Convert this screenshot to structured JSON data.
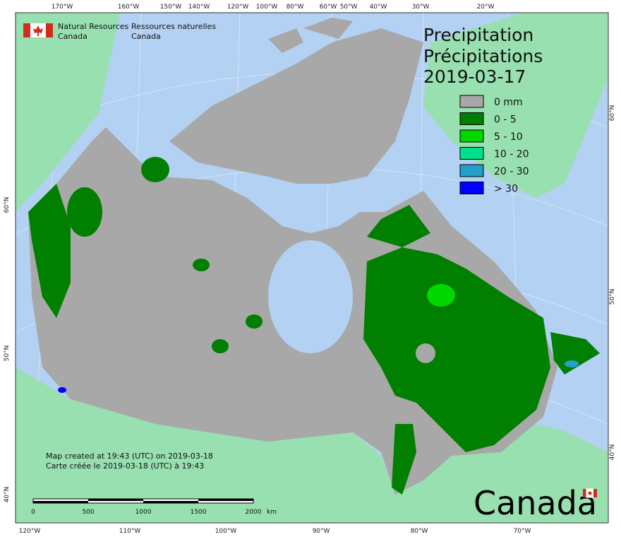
{
  "header": {
    "english": [
      "Natural Resources",
      "Canada"
    ],
    "french": [
      "Ressources naturelles",
      "Canada"
    ]
  },
  "title": [
    "Precipitation",
    "Précipitations",
    "2019-03-17"
  ],
  "legend": [
    {
      "label": "0 mm",
      "color": "#a8a8a8"
    },
    {
      "label": "0 - 5",
      "color": "#007f00"
    },
    {
      "label": "5 - 10",
      "color": "#00d800"
    },
    {
      "label": "10 - 20",
      "color": "#00e08a"
    },
    {
      "label": "20 - 30",
      "color": "#22a0c8"
    },
    {
      "label": "> 30",
      "color": "#0000ff"
    }
  ],
  "grid_labels": {
    "top": [
      "170°W",
      "160°W",
      "150°W",
      "140°W",
      "120°W",
      "100°W",
      "80°W",
      "60°W",
      "50°W",
      "40°W",
      "30°W",
      "20°W"
    ],
    "bottom": [
      "120°W",
      "110°W",
      "100°W",
      "90°W",
      "80°W",
      "70°W"
    ],
    "left": [
      "60°N",
      "50°N",
      "40°N"
    ],
    "right": [
      "60°N",
      "50°N",
      "40°N"
    ]
  },
  "footer": [
    "Map created at 19:43 (UTC) on 2019-03-18",
    "Carte créée le 2019-03-18 (UTC) à 19:43"
  ],
  "scale_bar": {
    "labels": [
      "0",
      "500",
      "1000",
      "1500",
      "2000"
    ],
    "unit": "km"
  },
  "wordmark": "Canada"
}
